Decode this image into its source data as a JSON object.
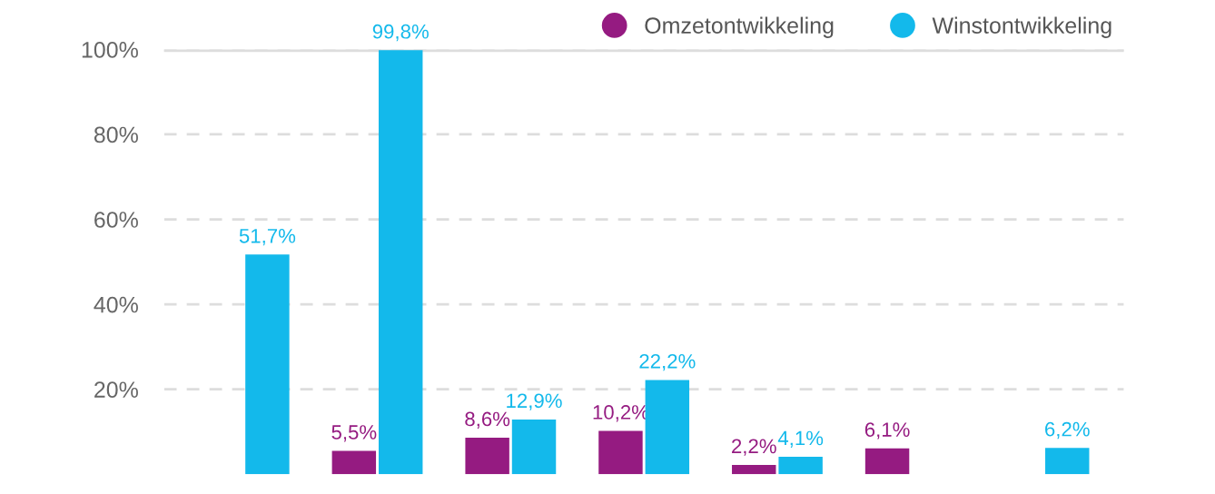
{
  "chart_data": {
    "type": "bar",
    "categories": [
      null,
      null,
      null,
      null,
      null,
      null,
      null
    ],
    "series": [
      {
        "name": "Omzetontwikkeling",
        "color": "#951b81",
        "values": [
          null,
          5.5,
          8.6,
          10.2,
          2.2,
          6.1,
          null
        ],
        "value_labels": [
          null,
          "5,5%",
          "8,6%",
          "10,2%",
          "2,2%",
          "6,1%",
          null
        ]
      },
      {
        "name": "Winstontwikkeling",
        "color": "#13b9eb",
        "values": [
          51.7,
          99.8,
          12.9,
          22.2,
          4.1,
          null,
          6.2
        ],
        "value_labels": [
          "51,7%",
          "99,8%",
          "12,9%",
          "22,2%",
          "4,1%",
          null,
          "6,2%"
        ]
      }
    ],
    "ylim": [
      0,
      100
    ],
    "yticks": [
      {
        "value": 20,
        "label": "20%"
      },
      {
        "value": 40,
        "label": "40%"
      },
      {
        "value": 60,
        "label": "60%"
      },
      {
        "value": 80,
        "label": "80%"
      },
      {
        "value": 100,
        "label": "100%"
      }
    ],
    "ref_lines": [
      {
        "axis": "y",
        "value": 100,
        "label": null,
        "color": "#dddddd",
        "line_style": "solid"
      }
    ],
    "grid": "y",
    "legend": "top right",
    "tick_labels": "y"
  }
}
